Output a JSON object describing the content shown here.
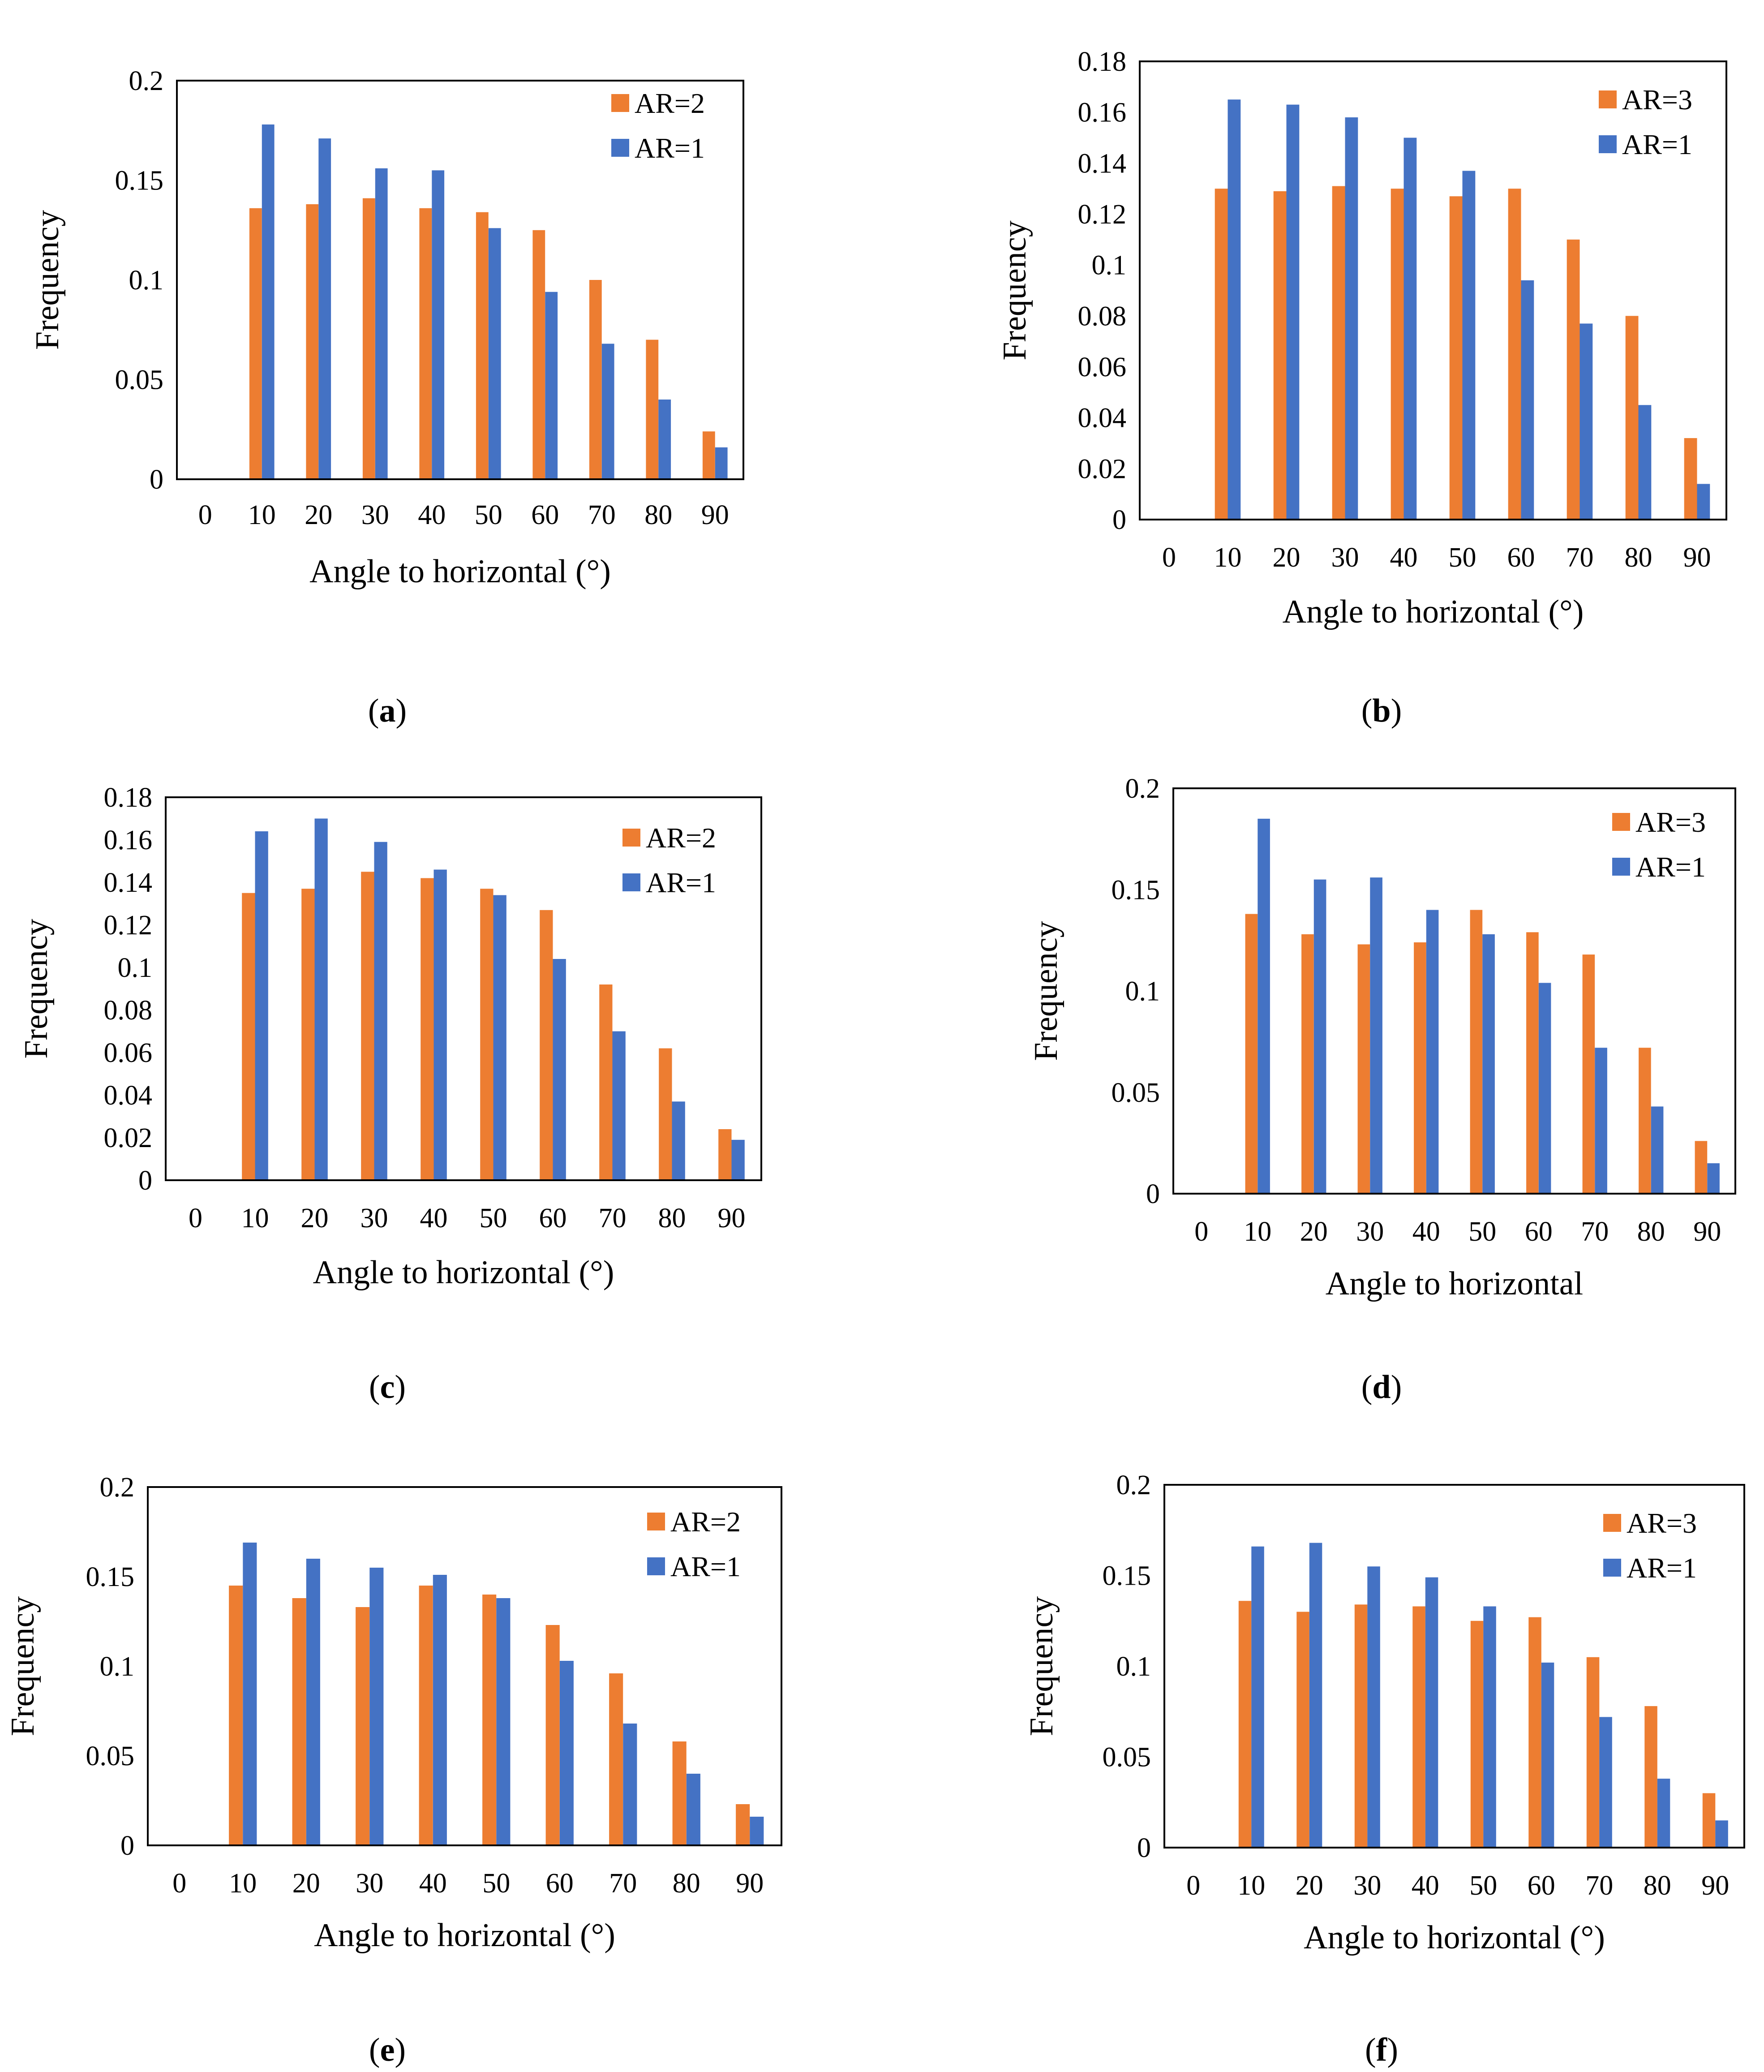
{
  "colors": {
    "series_a": "#ED7D31",
    "series_b": "#4472C4",
    "axis": "#000000"
  },
  "chart_data": [
    {
      "type": "bar",
      "panel": "a",
      "categories": [
        "0",
        "10",
        "20",
        "30",
        "40",
        "50",
        "60",
        "70",
        "80",
        "90"
      ],
      "series": [
        {
          "name": "AR=2",
          "values": [
            0,
            0.136,
            0.138,
            0.141,
            0.136,
            0.134,
            0.125,
            0.1,
            0.07,
            0.024
          ]
        },
        {
          "name": "AR=1",
          "values": [
            0,
            0.178,
            0.171,
            0.156,
            0.155,
            0.126,
            0.094,
            0.068,
            0.04,
            0.016
          ]
        }
      ],
      "xlabel": "Angle to horizontal (°)",
      "ylabel": "Frequency",
      "ylim": [
        0,
        0.2
      ],
      "yticks": [
        0,
        0.05,
        0.1,
        0.15,
        0.2
      ],
      "ytick_labels": [
        "0",
        "0.05",
        "0.1",
        "0.15",
        "0.2"
      ],
      "legend_position": "top-right"
    },
    {
      "type": "bar",
      "panel": "b",
      "categories": [
        "0",
        "10",
        "20",
        "30",
        "40",
        "50",
        "60",
        "70",
        "80",
        "90"
      ],
      "series": [
        {
          "name": "AR=3",
          "values": [
            0,
            0.13,
            0.129,
            0.131,
            0.13,
            0.127,
            0.13,
            0.11,
            0.08,
            0.032
          ]
        },
        {
          "name": "AR=1",
          "values": [
            0,
            0.165,
            0.163,
            0.158,
            0.15,
            0.137,
            0.094,
            0.077,
            0.045,
            0.014
          ]
        }
      ],
      "xlabel": "Angle to horizontal (°)",
      "ylabel": "Frequency",
      "ylim": [
        0,
        0.18
      ],
      "yticks": [
        0,
        0.02,
        0.04,
        0.06,
        0.08,
        0.1,
        0.12,
        0.14,
        0.16,
        0.18
      ],
      "ytick_labels": [
        "0",
        "0.02",
        "0.04",
        "0.06",
        "0.08",
        "0.1",
        "0.12",
        "0.14",
        "0.16",
        "0.18"
      ],
      "legend_position": "top-right"
    },
    {
      "type": "bar",
      "panel": "c",
      "categories": [
        "0",
        "10",
        "20",
        "30",
        "40",
        "50",
        "60",
        "70",
        "80",
        "90"
      ],
      "series": [
        {
          "name": "AR=2",
          "values": [
            0,
            0.135,
            0.137,
            0.145,
            0.142,
            0.137,
            0.127,
            0.092,
            0.062,
            0.024
          ]
        },
        {
          "name": "AR=1",
          "values": [
            0,
            0.164,
            0.17,
            0.159,
            0.146,
            0.134,
            0.104,
            0.07,
            0.037,
            0.019
          ]
        }
      ],
      "xlabel": "Angle to horizontal (°)",
      "ylabel": "Frequency",
      "ylim": [
        0,
        0.18
      ],
      "yticks": [
        0,
        0.02,
        0.04,
        0.06,
        0.08,
        0.1,
        0.12,
        0.14,
        0.16,
        0.18
      ],
      "ytick_labels": [
        "0",
        "0.02",
        "0.04",
        "0.06",
        "0.08",
        "0.1",
        "0.12",
        "0.14",
        "0.16",
        "0.18"
      ],
      "legend_position": "top-right"
    },
    {
      "type": "bar",
      "panel": "d",
      "categories": [
        "0",
        "10",
        "20",
        "30",
        "40",
        "50",
        "60",
        "70",
        "80",
        "90"
      ],
      "series": [
        {
          "name": "AR=3",
          "values": [
            0,
            0.138,
            0.128,
            0.123,
            0.124,
            0.14,
            0.129,
            0.118,
            0.072,
            0.026
          ]
        },
        {
          "name": "AR=1",
          "values": [
            0,
            0.185,
            0.155,
            0.156,
            0.14,
            0.128,
            0.104,
            0.072,
            0.043,
            0.015
          ]
        }
      ],
      "xlabel": "Angle to horizontal",
      "ylabel": "Frequency",
      "ylim": [
        0,
        0.2
      ],
      "yticks": [
        0,
        0.05,
        0.1,
        0.15,
        0.2
      ],
      "ytick_labels": [
        "0",
        "0.05",
        "0.1",
        "0.15",
        "0.2"
      ],
      "legend_position": "top-right"
    },
    {
      "type": "bar",
      "panel": "e",
      "categories": [
        "0",
        "10",
        "20",
        "30",
        "40",
        "50",
        "60",
        "70",
        "80",
        "90"
      ],
      "series": [
        {
          "name": "AR=2",
          "values": [
            0,
            0.145,
            0.138,
            0.133,
            0.145,
            0.14,
            0.123,
            0.096,
            0.058,
            0.023
          ]
        },
        {
          "name": "AR=1",
          "values": [
            0,
            0.169,
            0.16,
            0.155,
            0.151,
            0.138,
            0.103,
            0.068,
            0.04,
            0.016
          ]
        }
      ],
      "xlabel": "Angle to horizontal (°)",
      "ylabel": "Frequency",
      "ylim": [
        0,
        0.2
      ],
      "yticks": [
        0,
        0.05,
        0.1,
        0.15,
        0.2
      ],
      "ytick_labels": [
        "0",
        "0.05",
        "0.1",
        "0.15",
        "0.2"
      ],
      "legend_position": "top-right"
    },
    {
      "type": "bar",
      "panel": "f",
      "categories": [
        "0",
        "10",
        "20",
        "30",
        "40",
        "50",
        "60",
        "70",
        "80",
        "90"
      ],
      "series": [
        {
          "name": "AR=3",
          "values": [
            0,
            0.136,
            0.13,
            0.134,
            0.133,
            0.125,
            0.127,
            0.105,
            0.078,
            0.03
          ]
        },
        {
          "name": "AR=1",
          "values": [
            0,
            0.166,
            0.168,
            0.155,
            0.149,
            0.133,
            0.102,
            0.072,
            0.038,
            0.015
          ]
        }
      ],
      "xlabel": "Angle to horizontal (°)",
      "ylabel": "Frequency",
      "ylim": [
        0,
        0.2
      ],
      "yticks": [
        0,
        0.05,
        0.1,
        0.15,
        0.2
      ],
      "ytick_labels": [
        "0",
        "0.05",
        "0.1",
        "0.15",
        "0.2"
      ],
      "legend_position": "top-right"
    }
  ],
  "captions": [
    {
      "open": "(",
      "letter": "a",
      "close": ")"
    },
    {
      "open": "(",
      "letter": "b",
      "close": ")"
    },
    {
      "open": "(",
      "letter": "c",
      "close": ")"
    },
    {
      "open": "(",
      "letter": "d",
      "close": ")"
    },
    {
      "open": "(",
      "letter": "e",
      "close": ")"
    },
    {
      "open": "(",
      "letter": "f",
      "close": ")"
    }
  ]
}
